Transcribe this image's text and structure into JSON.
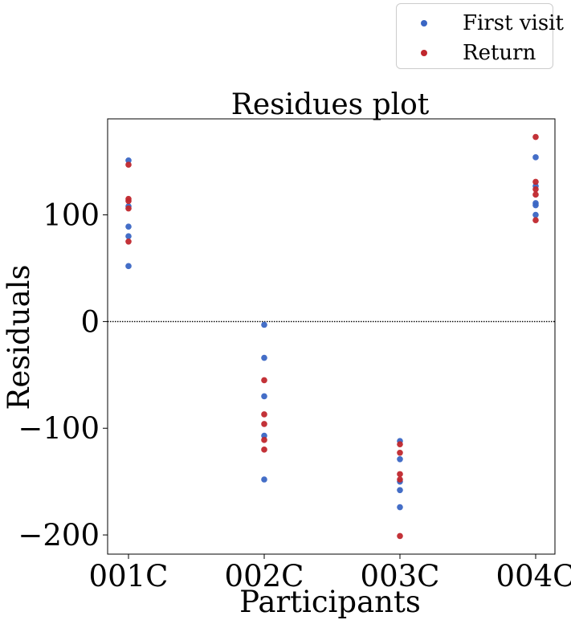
{
  "chart_data": {
    "type": "scatter",
    "title": "Residues plot",
    "xlabel": "Participants",
    "ylabel": "Residuals",
    "categories": [
      "001C",
      "002C",
      "003C",
      "004C"
    ],
    "ylim": [
      -218,
      190
    ],
    "yticks": [
      -200,
      -100,
      0,
      100
    ],
    "ytick_labels": [
      "−200",
      "−100",
      "0",
      "100"
    ],
    "reference_line": {
      "y": 0,
      "style": "dotted",
      "color": "#000000"
    },
    "grid": false,
    "legend": {
      "position": "top-right-outside"
    },
    "series": [
      {
        "name": "First visit",
        "color": "#3a66c4",
        "points": [
          {
            "x": "001C",
            "y": 151
          },
          {
            "x": "001C",
            "y": 108
          },
          {
            "x": "001C",
            "y": 89
          },
          {
            "x": "001C",
            "y": 80
          },
          {
            "x": "001C",
            "y": 52
          },
          {
            "x": "002C",
            "y": -3
          },
          {
            "x": "002C",
            "y": -34
          },
          {
            "x": "002C",
            "y": -70
          },
          {
            "x": "002C",
            "y": -107
          },
          {
            "x": "002C",
            "y": -148
          },
          {
            "x": "003C",
            "y": -112
          },
          {
            "x": "003C",
            "y": -129
          },
          {
            "x": "003C",
            "y": -150
          },
          {
            "x": "003C",
            "y": -158
          },
          {
            "x": "003C",
            "y": -174
          },
          {
            "x": "004C",
            "y": 154
          },
          {
            "x": "004C",
            "y": 127
          },
          {
            "x": "004C",
            "y": 111
          },
          {
            "x": "004C",
            "y": 109
          },
          {
            "x": "004C",
            "y": 100
          }
        ]
      },
      {
        "name": "Return",
        "color": "#c0272d",
        "points": [
          {
            "x": "001C",
            "y": 147
          },
          {
            "x": "001C",
            "y": 115
          },
          {
            "x": "001C",
            "y": 113
          },
          {
            "x": "001C",
            "y": 106
          },
          {
            "x": "001C",
            "y": 75
          },
          {
            "x": "002C",
            "y": -55
          },
          {
            "x": "002C",
            "y": -87
          },
          {
            "x": "002C",
            "y": -96
          },
          {
            "x": "002C",
            "y": -111
          },
          {
            "x": "002C",
            "y": -120
          },
          {
            "x": "003C",
            "y": -115
          },
          {
            "x": "003C",
            "y": -123
          },
          {
            "x": "003C",
            "y": -143
          },
          {
            "x": "003C",
            "y": -148
          },
          {
            "x": "003C",
            "y": -201
          },
          {
            "x": "004C",
            "y": 173
          },
          {
            "x": "004C",
            "y": 131
          },
          {
            "x": "004C",
            "y": 124
          },
          {
            "x": "004C",
            "y": 119
          },
          {
            "x": "004C",
            "y": 95
          }
        ]
      }
    ]
  }
}
